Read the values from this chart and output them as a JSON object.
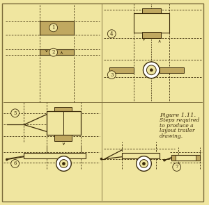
{
  "bg_color": "#f0e6a0",
  "border_color": "#7a6a3a",
  "drawing_color": "#3a2a0a",
  "fill_color": "#c0a860",
  "title": "Figure 1.11.",
  "subtitle_lines": [
    "Steps required",
    "to produce a",
    "layout trailer",
    "drawing."
  ],
  "title_fontsize": 6.0,
  "subtitle_fontsize": 5.5
}
